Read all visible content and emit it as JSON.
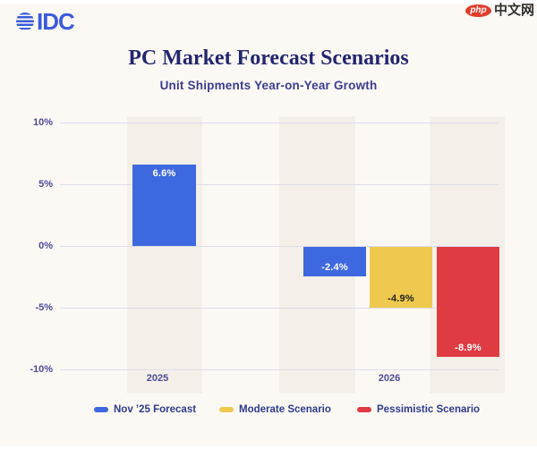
{
  "palette": {
    "page_background": "#FCF9F5",
    "stripe": "#F4F0E9",
    "gridline": "#DEDBEB",
    "title_text": "#23266E",
    "subtitle_text": "#3B3D92",
    "axis_text": "#4C4A9B",
    "legend_text": "#2D3A8E",
    "idc_blue": "#3A5BD9",
    "php_red": "#E23B2B"
  },
  "logo_idc": {
    "text": "IDC"
  },
  "logo_php": {
    "badge_text": "php",
    "site_text": "中文网"
  },
  "header": {
    "title": "PC Market Forecast Scenarios",
    "subtitle": "Unit Shipments Year-on-Year Growth"
  },
  "chart_data": {
    "type": "bar",
    "title": "PC Market Forecast Scenarios",
    "subtitle": "Unit Shipments Year-on-Year Growth",
    "categories": [
      "2025",
      "2026"
    ],
    "series": [
      {
        "name": "Nov ’25 Forecast",
        "color": "#3E68E0",
        "label_color": "#FFFFFF",
        "data": [
          {
            "category": "2025",
            "value": 6.6,
            "label": "6.6%"
          },
          {
            "category": "2026",
            "value": -2.4,
            "label": "-2.4%"
          }
        ]
      },
      {
        "name": "Moderate Scenario",
        "color": "#EFC94D",
        "label_color": "#222222",
        "data": [
          {
            "category": "2026",
            "value": -4.9,
            "label": "-4.9%"
          }
        ]
      },
      {
        "name": "Pessimistic Scenario",
        "color": "#DF3B42",
        "label_color": "#FFFFFF",
        "data": [
          {
            "category": "2026",
            "value": -8.9,
            "label": "-8.9%"
          }
        ]
      }
    ],
    "ylim": [
      -10,
      10
    ],
    "yticks": [
      {
        "value": 10,
        "label": "10%"
      },
      {
        "value": 5,
        "label": "5%"
      },
      {
        "value": 0,
        "label": "0%"
      },
      {
        "value": -5,
        "label": "-5%"
      },
      {
        "value": -10,
        "label": "-10%"
      }
    ],
    "grid": true,
    "legend_position": "bottom"
  }
}
